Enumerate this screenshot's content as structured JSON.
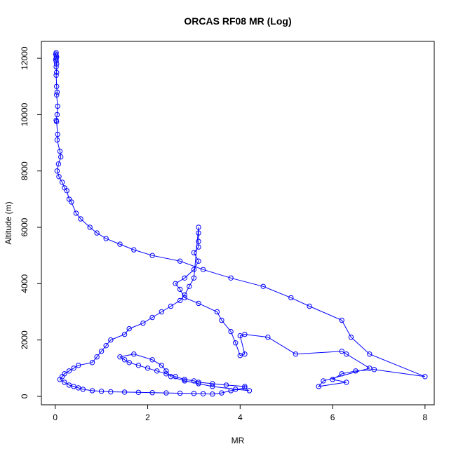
{
  "chart_data": {
    "type": "line",
    "title": "ORCAS RF08 MR (Log)",
    "xlabel": "MR",
    "ylabel": "Altitude (m)",
    "xlim": [
      -0.3,
      8.2
    ],
    "ylim": [
      -300,
      12600
    ],
    "xticks": [
      0,
      2,
      4,
      6,
      8
    ],
    "yticks": [
      0,
      2000,
      4000,
      6000,
      8000,
      10000,
      12000
    ],
    "xtick_labels": [
      "0",
      "2",
      "4",
      "6",
      "8"
    ],
    "ytick_labels": [
      "0",
      "2000",
      "4000",
      "6000",
      "8000",
      "10000",
      "12000"
    ],
    "grid": false,
    "legend": "none",
    "colors": {
      "series": "#0000ff",
      "axes": "#000000"
    },
    "series": [
      {
        "marker": "open-circle",
        "x": [
          0.02,
          0.01,
          0.02,
          0.03,
          0.02,
          0.01,
          0.02,
          0.03,
          0.02,
          0.03,
          0.02,
          0.03,
          0.04,
          0.03,
          0.05,
          0.04,
          0.02,
          0.03,
          0.05,
          0.04,
          0.1,
          0.12,
          0.07,
          0.04,
          0.08,
          0.15,
          0.2,
          0.25,
          0.3,
          0.35,
          0.45,
          0.55,
          0.75,
          0.9,
          1.1,
          1.4,
          1.7,
          2.1,
          2.7,
          3.2,
          3.8,
          4.5,
          5.1,
          5.5,
          6.2,
          6.4,
          6.8,
          8.0,
          6.9,
          6.5,
          6.2,
          6.0,
          6.3,
          5.7,
          5.8,
          6.8,
          6.3,
          6.2,
          5.2,
          4.6,
          4.1,
          4.0,
          4.1,
          4.0,
          3.9,
          3.8,
          3.6,
          3.5,
          3.1,
          2.8,
          2.7,
          2.6,
          2.8,
          3.0,
          3.1,
          3.0,
          3.1,
          3.1,
          3.1,
          3.1,
          3.0,
          2.9,
          2.8,
          2.7,
          2.5,
          2.3,
          2.1,
          1.9,
          1.6,
          1.5,
          1.2,
          1.1,
          1.0,
          0.9,
          0.8,
          0.5,
          0.4,
          0.3,
          0.2,
          0.15,
          0.1,
          0.2,
          0.3,
          0.4,
          0.5,
          0.6,
          0.8,
          1.0,
          1.2,
          1.5,
          1.8,
          2.1,
          2.4,
          2.7,
          3.0,
          3.2,
          3.4,
          3.6,
          3.8,
          4.1,
          4.1,
          3.7,
          3.4,
          3.1,
          3.0,
          2.8,
          2.6,
          2.4,
          2.2,
          2.0,
          1.8,
          1.6,
          1.5,
          1.4,
          1.7,
          2.1,
          2.3,
          2.4,
          2.5,
          2.8,
          3.1,
          3.4,
          3.9,
          4.2
        ],
        "y": [
          12200,
          12150,
          12100,
          12050,
          12000,
          11950,
          11900,
          11800,
          11700,
          11500,
          11400,
          11000,
          10800,
          10700,
          10300,
          10000,
          9800,
          9750,
          9300,
          9100,
          8700,
          8500,
          8250,
          8000,
          7800,
          7600,
          7400,
          7300,
          7000,
          6900,
          6500,
          6300,
          6000,
          5800,
          5600,
          5400,
          5200,
          5000,
          4800,
          4500,
          4200,
          3900,
          3500,
          3200,
          2700,
          2100,
          1500,
          700,
          950,
          900,
          800,
          600,
          500,
          350,
          550,
          1000,
          1500,
          1600,
          1500,
          2100,
          2200,
          2150,
          1500,
          1450,
          1900,
          2300,
          2700,
          3000,
          3300,
          3500,
          3800,
          4000,
          4200,
          4500,
          4800,
          5100,
          5300,
          5500,
          5800,
          6000,
          4200,
          3900,
          3600,
          3400,
          3200,
          3000,
          2800,
          2600,
          2400,
          2200,
          2000,
          1800,
          1600,
          1400,
          1200,
          1100,
          1000,
          900,
          800,
          700,
          600,
          500,
          400,
          350,
          300,
          250,
          200,
          180,
          160,
          150,
          140,
          130,
          120,
          110,
          100,
          90,
          80,
          120,
          200,
          300,
          350,
          400,
          450,
          500,
          550,
          600,
          700,
          800,
          900,
          1000,
          1100,
          1200,
          1300,
          1400,
          1500,
          1300,
          1100,
          900,
          700,
          550,
          450,
          350,
          250,
          200
        ]
      }
    ]
  }
}
